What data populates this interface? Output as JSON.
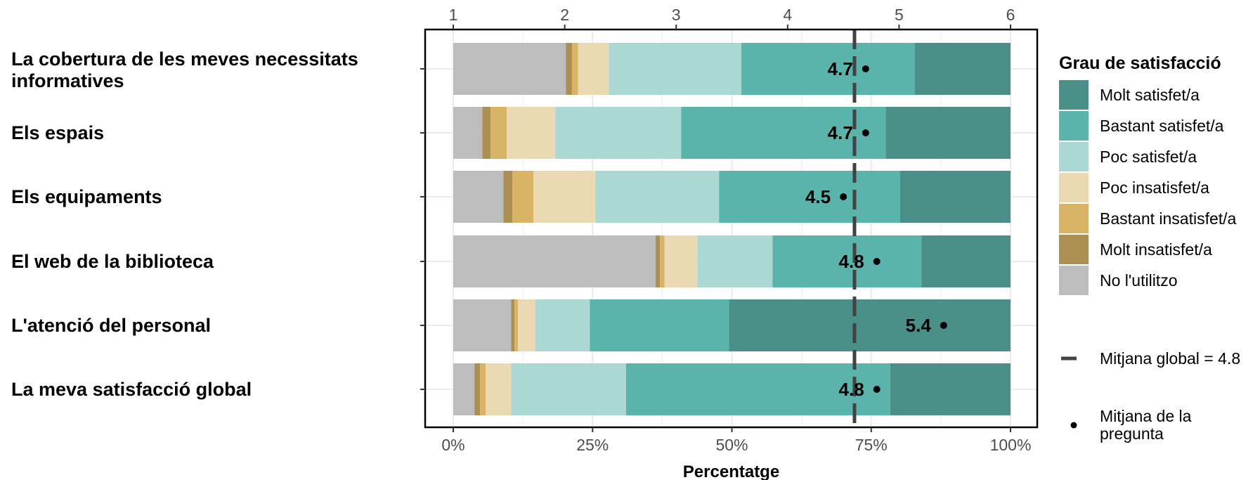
{
  "chart_data": {
    "type": "bar",
    "orientation": "horizontal-stacked",
    "xlabel": "Percentatge",
    "x_ticks": [
      "0%",
      "25%",
      "50%",
      "75%",
      "100%"
    ],
    "x_top_ticks": [
      "1",
      "2",
      "3",
      "4",
      "5",
      "6"
    ],
    "xlim": [
      0,
      100
    ],
    "x_top_lim": [
      1,
      6
    ],
    "grid": true,
    "categories": [
      "La cobertura de les meves necessitats informatives",
      "Els espais",
      "Els equipaments",
      "El web de la biblioteca",
      "L'atenció del personal",
      "La meva satisfacció global"
    ],
    "category_lines": [
      [
        "La cobertura de les meves necessitats",
        "informatives"
      ],
      [
        "Els espais"
      ],
      [
        "Els equipaments"
      ],
      [
        "El web de la biblioteca"
      ],
      [
        "L'atenció del personal"
      ],
      [
        "La meva satisfacció global"
      ]
    ],
    "series": [
      {
        "name": "No l'utilitzo",
        "color": "#bdbdbd",
        "values": [
          20.2,
          5.2,
          9.0,
          36.3,
          10.4,
          3.8
        ]
      },
      {
        "name": "Molt insatisfet/a",
        "color": "#ab8f53",
        "values": [
          1.1,
          1.5,
          1.6,
          0.8,
          0.6,
          1.0
        ]
      },
      {
        "name": "Bastant insatisfet/a",
        "color": "#d9b467",
        "values": [
          1.1,
          2.9,
          3.8,
          0.8,
          0.6,
          1.0
        ]
      },
      {
        "name": "Poc insatisfet/a",
        "color": "#ead9b2",
        "values": [
          5.5,
          8.7,
          11.1,
          5.9,
          3.1,
          4.6
        ]
      },
      {
        "name": "Poc satisfet/a",
        "color": "#acd8d4",
        "values": [
          23.8,
          22.6,
          22.2,
          13.5,
          9.8,
          20.6
        ]
      },
      {
        "name": "Bastant satisfet/a",
        "color": "#5ab4ab",
        "values": [
          31.1,
          36.7,
          32.5,
          26.7,
          25.0,
          47.4
        ]
      },
      {
        "name": "Molt satisfet/a",
        "color": "#4a9089",
        "values": [
          17.2,
          22.4,
          19.8,
          16.0,
          50.5,
          21.6
        ]
      }
    ],
    "means": [
      4.7,
      4.7,
      4.5,
      4.8,
      5.4,
      4.8
    ],
    "mean_labels": [
      "4.7",
      "4.7",
      "4.5",
      "4.8",
      "5.4",
      "4.8"
    ],
    "global_mean": 4.8,
    "global_mean_line_pct": 72,
    "legend": {
      "title": "Grau de satisfacció",
      "position": "right",
      "items": [
        "Molt satisfet/a",
        "Bastant satisfet/a",
        "Poc satisfet/a",
        "Poc insatisfet/a",
        "Bastant insatisfet/a",
        "Molt insatisfet/a",
        "No l'utilitzo"
      ],
      "global_mean_label": "Mitjana global =  4.8",
      "question_mean_label_lines": [
        "Mitjana de la",
        "pregunta"
      ]
    }
  }
}
